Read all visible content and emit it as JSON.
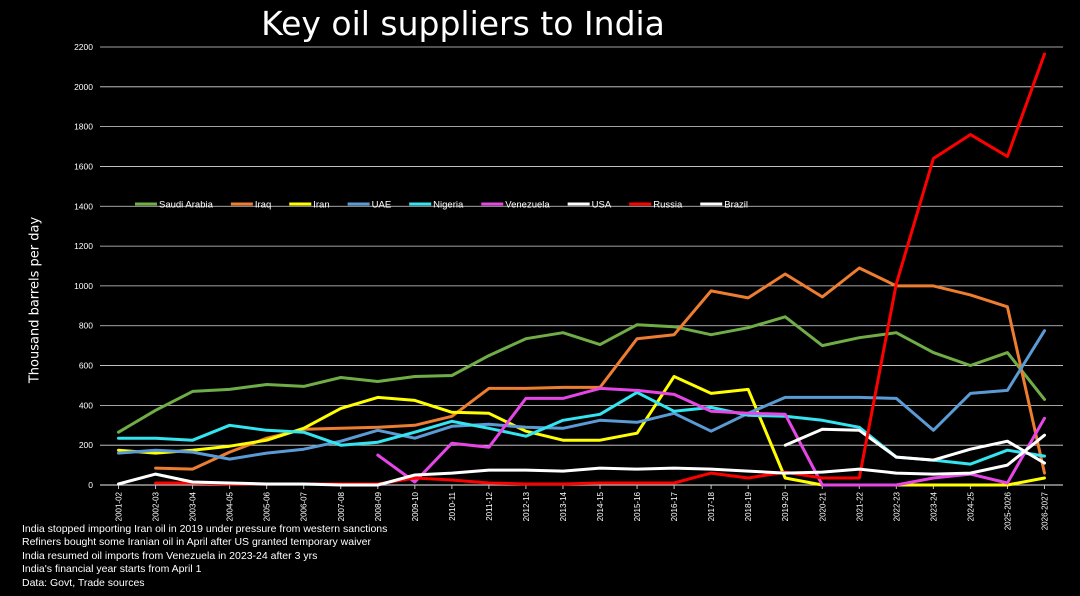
{
  "chart_data": {
    "type": "line",
    "title": "Key oil suppliers to India",
    "xlabel": "",
    "ylabel": "Thousand barrels per day",
    "ylim": [
      0,
      2200
    ],
    "yticks": [
      0,
      200,
      400,
      600,
      800,
      1000,
      1200,
      1400,
      1600,
      1800,
      2000,
      2200
    ],
    "grid": true,
    "legend_position": "upper-left",
    "categories": [
      "2001-02",
      "2002-03",
      "2003-04",
      "2004-05",
      "2005-06",
      "2006-07",
      "2007-08",
      "2008-09",
      "2009-10",
      "2010-11",
      "2011-12",
      "2012-13",
      "2013-14",
      "2014-15",
      "2015-16",
      "2016-17",
      "2017-18",
      "2018-19",
      "2019-20",
      "2020-21",
      "2021-22",
      "2022-23",
      "2023-24",
      "2024-25",
      "2025-2026",
      "2026-2027"
    ],
    "series": [
      {
        "name": "Saudi Arabia",
        "color": "#70ad47",
        "values": [
          265,
          375,
          470,
          480,
          505,
          495,
          540,
          520,
          545,
          550,
          650,
          735,
          765,
          705,
          805,
          795,
          755,
          790,
          845,
          700,
          740,
          765,
          665,
          600,
          665,
          430
        ]
      },
      {
        "name": "Iraq",
        "color": "#ed7d31",
        "values": [
          null,
          85,
          80,
          165,
          235,
          280,
          285,
          290,
          300,
          345,
          485,
          485,
          490,
          490,
          735,
          755,
          975,
          940,
          1060,
          945,
          1090,
          1000,
          1000,
          955,
          895,
          60
        ]
      },
      {
        "name": "Iran",
        "color": "#ffff00",
        "values": [
          175,
          160,
          175,
          195,
          225,
          285,
          385,
          440,
          425,
          365,
          360,
          270,
          225,
          225,
          260,
          545,
          460,
          480,
          35,
          0,
          0,
          0,
          0,
          0,
          0,
          35
        ]
      },
      {
        "name": "UAE",
        "color": "#5b9bd5",
        "values": [
          160,
          175,
          165,
          130,
          160,
          180,
          220,
          275,
          235,
          295,
          305,
          290,
          285,
          325,
          315,
          360,
          270,
          360,
          440,
          440,
          440,
          435,
          275,
          460,
          475,
          775
        ]
      },
      {
        "name": "Nigeria",
        "color": "#33e5f0",
        "values": [
          235,
          235,
          225,
          300,
          275,
          265,
          200,
          215,
          265,
          320,
          285,
          245,
          325,
          355,
          465,
          370,
          390,
          350,
          345,
          325,
          290,
          140,
          125,
          105,
          175,
          145
        ]
      },
      {
        "name": "Venezuela",
        "color": "#e646e6",
        "values": [
          null,
          null,
          null,
          null,
          null,
          null,
          null,
          150,
          15,
          210,
          190,
          435,
          435,
          485,
          475,
          455,
          370,
          360,
          355,
          0,
          0,
          0,
          35,
          55,
          10,
          335
        ]
      },
      {
        "name": "USA",
        "color": "#ffffff",
        "values": [
          null,
          null,
          null,
          null,
          null,
          null,
          null,
          null,
          null,
          null,
          null,
          null,
          null,
          null,
          null,
          null,
          null,
          null,
          200,
          280,
          275,
          140,
          125,
          180,
          220,
          110
        ]
      },
      {
        "name": "Russia",
        "color": "#ff0000",
        "values": [
          null,
          10,
          10,
          5,
          5,
          5,
          5,
          5,
          35,
          25,
          10,
          5,
          5,
          10,
          10,
          10,
          60,
          35,
          65,
          35,
          35,
          1010,
          1640,
          1760,
          1650,
          2165
        ]
      },
      {
        "name": "Brazil",
        "color": "#ffffff",
        "values": [
          5,
          55,
          15,
          10,
          5,
          5,
          0,
          0,
          50,
          60,
          75,
          75,
          70,
          85,
          80,
          85,
          80,
          70,
          60,
          65,
          80,
          60,
          55,
          60,
          100,
          250
        ]
      }
    ]
  },
  "notes": [
    "India stopped importing Iran oil in 2019 under pressure from western sanctions",
    "Refiners bought some Iranian oil in April after US granted temporary waiver",
    "India resumed oil imports from Venezuela in 2023-24 after 3 yrs",
    "India's financial year starts from April 1",
    "Data: Govt, Trade sources"
  ]
}
